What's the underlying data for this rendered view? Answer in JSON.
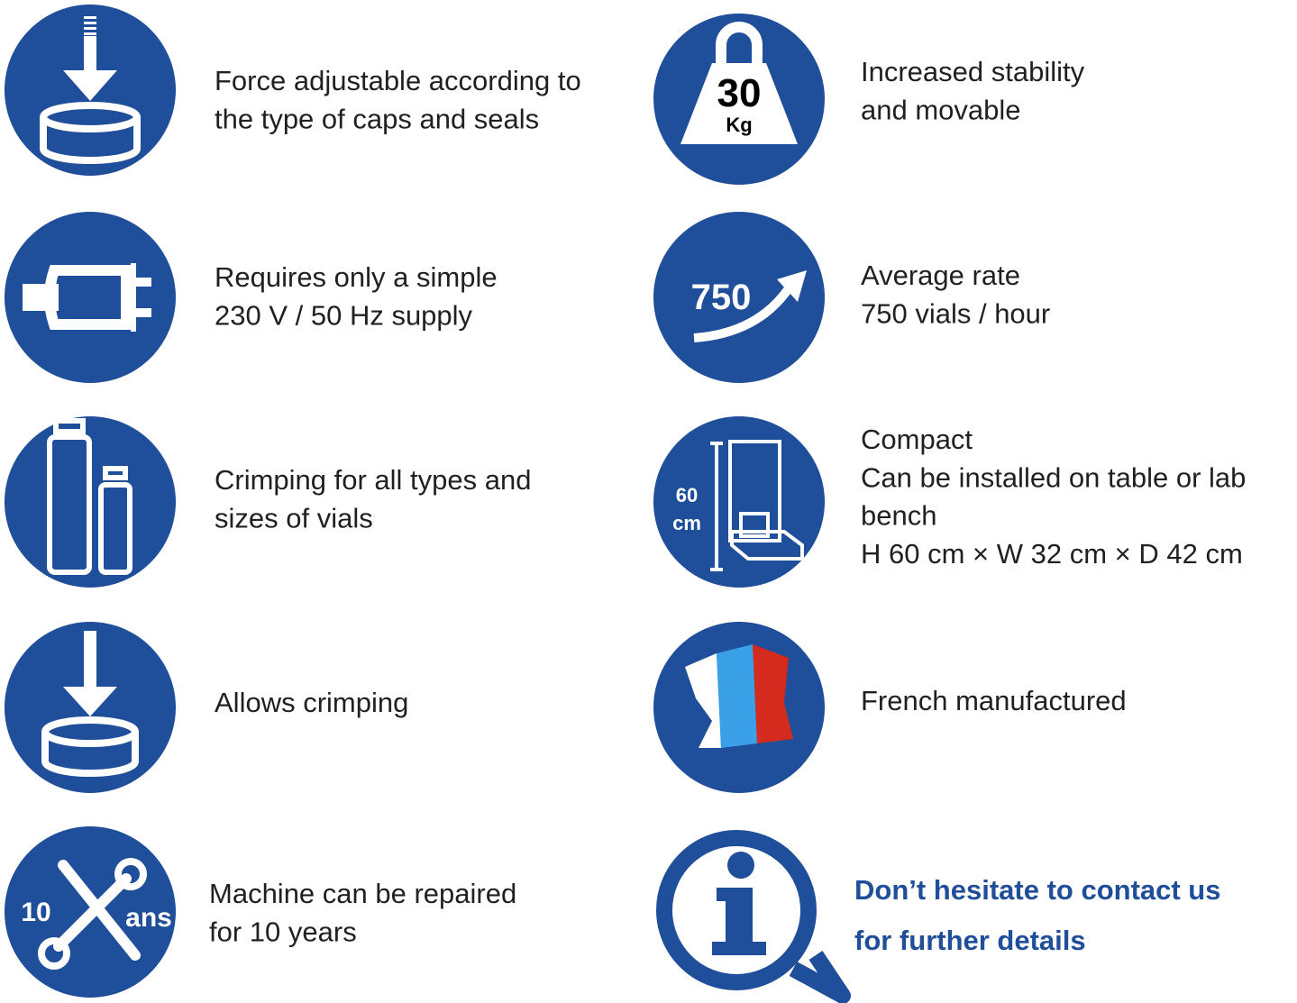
{
  "features": [
    {
      "description": [
        "Force adjustable according to",
        "the type of caps and seals"
      ]
    },
    {
      "description": [
        "Requires only a simple",
        "230 V / 50 Hz supply"
      ]
    },
    {
      "description": [
        "Crimping for all types and",
        "sizes of vials"
      ]
    },
    {
      "description": [
        "Allows crimping"
      ]
    },
    {
      "icon_text": [
        "10",
        "ans"
      ],
      "description": [
        "Machine can be repaired",
        "for 10 years"
      ]
    },
    {
      "icon_text": [
        "30",
        "Kg"
      ],
      "description": [
        "Increased stability",
        "and movable"
      ]
    },
    {
      "icon_text": [
        "750"
      ],
      "description": [
        "Average rate",
        "750 vials / hour"
      ]
    },
    {
      "icon_text": [
        "60",
        "cm"
      ],
      "description": [
        "Compact",
        "Can be installed on table or lab",
        "bench",
        "H 60 cm × W 32 cm × D 42 cm"
      ]
    },
    {
      "description": [
        "French manufactured"
      ]
    }
  ],
  "contact": [
    "Don’t hesitate to contact us",
    "for further details"
  ]
}
